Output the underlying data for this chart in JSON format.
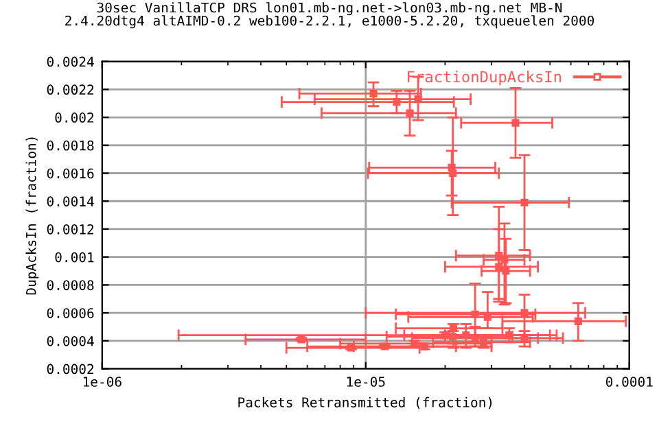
{
  "chart_data": {
    "type": "scatter",
    "title": "30sec VanillaTCP DRS lon01.mb-ng.net->lon03.mb-ng.net MB-N\n2.4.20dtg4 altAIMD-0.2 web100-2.2.1, e1000-5.2.20, txqueuelen 2000",
    "xlabel": "Packets Retransmitted (fraction)",
    "ylabel": "DupAcksIn (fraction)",
    "log": "x",
    "xlim": [
      1e-06,
      0.0001
    ],
    "xticks": [
      1e-06,
      1e-05,
      0.0001
    ],
    "ylim": [
      0.0002,
      0.0024
    ],
    "yticks": [
      0.0002,
      0.0004,
      0.0006,
      0.0008,
      0.001,
      0.0012,
      0.0014,
      0.0016,
      0.0018,
      0.002,
      0.0022,
      0.0024
    ],
    "grid": true,
    "legend": "top right",
    "marker": "square",
    "series": [
      {
        "name": "FractionDupAcksIn",
        "color": "#ff5555",
        "x": [
          1.07e-05,
          1.58e-05,
          1.31e-05,
          1.47e-05,
          3.7e-05,
          2.12e-05,
          2.14e-05,
          4e-05,
          3.2e-05,
          3.36e-05,
          3.4e-05,
          3.2e-05,
          6.4e-05,
          4e-05,
          2.6e-05,
          2.9e-05,
          5.7e-06,
          8.8e-06,
          1.18e-05,
          1.53e-05,
          1.67e-05,
          2.14e-05,
          2.15e-05,
          2.4e-05,
          2.6e-05,
          2.8e-05,
          3.5e-05,
          4e-05,
          2e-05
        ],
        "values": [
          0.00217,
          0.00213,
          0.00211,
          0.00203,
          0.00196,
          0.00164,
          0.0016,
          0.00139,
          0.00101,
          0.00098,
          0.0009,
          0.00093,
          0.00054,
          0.0006,
          0.00059,
          0.00057,
          0.00041,
          0.00035,
          0.00036,
          0.00038,
          0.00036,
          0.00043,
          0.00049,
          0.00044,
          0.00042,
          0.00039,
          0.00044,
          0.00042,
          0.00044
        ],
        "xerrors": [
          [
            5.6e-06,
            1.62e-05
          ],
          [
            6.4e-06,
            2.5e-05
          ],
          [
            4.8e-06,
            2.16e-05
          ],
          [
            6.8e-06,
            2.2e-05
          ],
          [
            2.3e-05,
            5.1e-05
          ],
          [
            1.03e-05,
            3.1e-05
          ],
          [
            1.02e-05,
            3.2e-05
          ],
          [
            2.12e-05,
            5.9e-05
          ],
          [
            2.2e-05,
            4.2e-05
          ],
          [
            2.8e-05,
            4e-05
          ],
          [
            2.75e-05,
            4.2e-05
          ],
          [
            2e-05,
            4.5e-05
          ],
          [
            3.3e-05,
            9.7e-05
          ],
          [
            1e-05,
            6.8e-05
          ],
          [
            1.3e-05,
            4.4e-05
          ],
          [
            1.45e-05,
            4.3e-05
          ],
          [
            3.5e-06,
            1e-05
          ],
          [
            5e-06,
            1.6e-05
          ],
          [
            6e-06,
            2.2e-05
          ],
          [
            8e-06,
            3e-05
          ],
          [
            9e-06,
            3e-05
          ],
          [
            1.2e-05,
            3.6e-05
          ],
          [
            1.3e-05,
            3.3e-05
          ],
          [
            1.4e-05,
            4e-05
          ],
          [
            1.5e-05,
            4.5e-05
          ],
          [
            1.8e-05,
            4.2e-05
          ],
          [
            2e-05,
            5.3e-05
          ],
          [
            2.6e-05,
            5.6e-05
          ],
          [
            1.95e-06,
            5e-05
          ]
        ],
        "errors": [
          [
            0.00208,
            0.00225
          ],
          [
            0.00198,
            0.00229
          ],
          [
            0.00203,
            0.00219
          ],
          [
            0.00187,
            0.00219
          ],
          [
            0.00171,
            0.00221
          ],
          [
            0.00144,
            0.00176
          ],
          [
            0.0013,
            0.002
          ],
          [
            0.00105,
            0.00173
          ],
          [
            0.00068,
            0.00136
          ],
          [
            0.00066,
            0.00124
          ],
          [
            0.00067,
            0.00113
          ],
          [
            0.0007,
            0.0012
          ],
          [
            0.0004,
            0.00067
          ],
          [
            0.00044,
            0.00073
          ],
          [
            0.00044,
            0.00081
          ],
          [
            0.00049,
            0.00075
          ],
          [
            0.0004,
            0.00042
          ],
          [
            0.00034,
            0.00036
          ],
          [
            0.00035,
            0.00037
          ],
          [
            0.00036,
            0.0004
          ],
          [
            0.00034,
            0.00038
          ],
          [
            0.00038,
            0.00047
          ],
          [
            0.00035,
            0.00052
          ],
          [
            0.00035,
            0.00052
          ],
          [
            0.00036,
            0.0005
          ],
          [
            0.00035,
            0.00043
          ],
          [
            0.00039,
            0.00049
          ],
          [
            0.00036,
            0.00047
          ],
          [
            0.00042,
            0.00046
          ]
        ]
      }
    ]
  }
}
